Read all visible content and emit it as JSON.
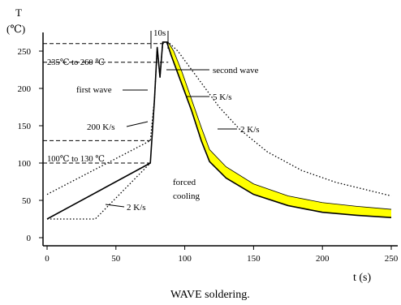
{
  "chart_data": {
    "type": "line",
    "caption": "WAVE soldering.",
    "ylabel_top": "T",
    "ylabel_unit": "(℃)",
    "xlabel": "t (s)",
    "xlim": [
      0,
      250
    ],
    "ylim": [
      -5,
      290
    ],
    "x_ticks": [
      0,
      50,
      100,
      150,
      200,
      250
    ],
    "y_ticks": [
      0,
      50,
      100,
      150,
      200,
      250
    ],
    "grid": false,
    "annotations": {
      "top_bracket": "10s",
      "range_high": "235℃ to 260 ℃",
      "range_low": "100℃  to 130 ℃",
      "first_wave": "first wave",
      "second_wave": "second wave",
      "rate_200": "200 K/s",
      "rate_5": "5 K/s",
      "rate_2_right": "2 K/s",
      "rate_2_left": "2 K/s",
      "forced_1": "forced",
      "forced_2": "cooling"
    },
    "reference_levels": [
      260,
      235,
      130,
      100
    ],
    "series": [
      {
        "style": "solid",
        "points": [
          [
            0,
            25
          ],
          [
            75,
            100
          ],
          [
            78,
            185
          ],
          [
            80,
            255
          ],
          [
            82,
            215
          ],
          [
            84,
            262
          ],
          [
            87,
            262
          ],
          [
            90,
            245
          ],
          [
            97,
            210
          ],
          [
            105,
            170
          ],
          [
            112,
            130
          ],
          [
            118,
            102
          ],
          [
            130,
            80
          ],
          [
            150,
            58
          ],
          [
            175,
            43
          ],
          [
            200,
            34
          ],
          [
            225,
            30
          ],
          [
            250,
            27
          ]
        ]
      },
      {
        "style": "dotted",
        "points": [
          [
            0,
            58
          ],
          [
            75,
            130
          ],
          [
            78,
            185
          ],
          [
            80,
            255
          ],
          [
            82,
            215
          ],
          [
            84,
            262
          ],
          [
            88,
            262
          ],
          [
            95,
            250
          ],
          [
            105,
            225
          ],
          [
            115,
            200
          ],
          [
            125,
            175
          ],
          [
            140,
            145
          ],
          [
            160,
            115
          ],
          [
            185,
            90
          ],
          [
            210,
            74
          ],
          [
            250,
            56
          ]
        ]
      },
      {
        "style": "dotted",
        "points": [
          [
            0,
            25
          ],
          [
            35,
            25
          ],
          [
            75,
            100
          ]
        ]
      },
      {
        "style": "band",
        "color": "#ffff00",
        "upper": [
          [
            88,
            262
          ],
          [
            92,
            250
          ],
          [
            98,
            222
          ],
          [
            105,
            185
          ],
          [
            112,
            148
          ],
          [
            118,
            118
          ],
          [
            130,
            95
          ],
          [
            150,
            72
          ],
          [
            175,
            56
          ],
          [
            200,
            47
          ],
          [
            225,
            42
          ],
          [
            250,
            38
          ]
        ],
        "lower": [
          [
            90,
            245
          ],
          [
            97,
            210
          ],
          [
            105,
            170
          ],
          [
            112,
            130
          ],
          [
            118,
            102
          ],
          [
            130,
            80
          ],
          [
            150,
            58
          ],
          [
            175,
            43
          ],
          [
            200,
            34
          ],
          [
            225,
            30
          ],
          [
            250,
            27
          ]
        ]
      }
    ]
  }
}
